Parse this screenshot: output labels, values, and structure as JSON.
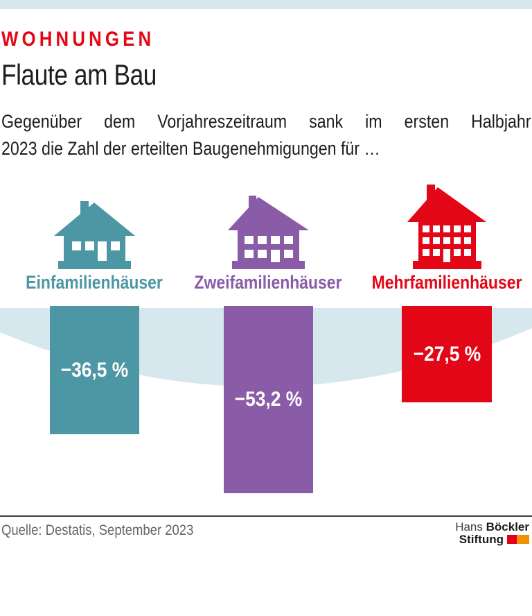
{
  "colors": {
    "light_blue": "#d7e7ee",
    "kicker_red": "#e30613",
    "text_black": "#1d1d1b",
    "source_gray": "#63666a",
    "divider_gray": "#3f3f3f",
    "logo_red": "#e2001a",
    "logo_orange": "#f39200",
    "bar_value_white": "#ffffff"
  },
  "header": {
    "kicker": "WOHNUNGEN",
    "title": "Flaute am Bau",
    "subtitle_line1": "Gegenüber dem Vorjahreszeitraum sank im ersten Halbjahr",
    "subtitle_line2": "2023 die Zahl der erteilten Baugenehmigungen für …"
  },
  "chart_data": {
    "type": "bar",
    "title": "Flaute am Bau",
    "subtitle": "Gegenüber dem Vorjahreszeitraum sank im ersten Halbjahr 2023 die Zahl der erteilten Baugenehmigungen für …",
    "categories": [
      "Einfamilienhäuser",
      "Zweifamilienhäuser",
      "Mehrfamilienhäuser"
    ],
    "values": [
      -36.5,
      -53.2,
      -27.5
    ],
    "value_labels": [
      "−36,5 %",
      "−53,2 %",
      "−27,5 %"
    ],
    "series_colors": [
      "#4d96a4",
      "#8a5ba6",
      "#e30617"
    ],
    "unit": "%",
    "orientation": "vertical-downward-from-baseline",
    "icons": [
      "single-family-house-icon",
      "two-family-house-icon",
      "multi-family-house-icon"
    ],
    "background_shape_color": "#d7e7ee"
  },
  "footer": {
    "source": "Quelle: Destatis, September 2023",
    "logo": {
      "word1": "Hans",
      "word2": "Böckler",
      "word3": "Stiftung"
    }
  }
}
